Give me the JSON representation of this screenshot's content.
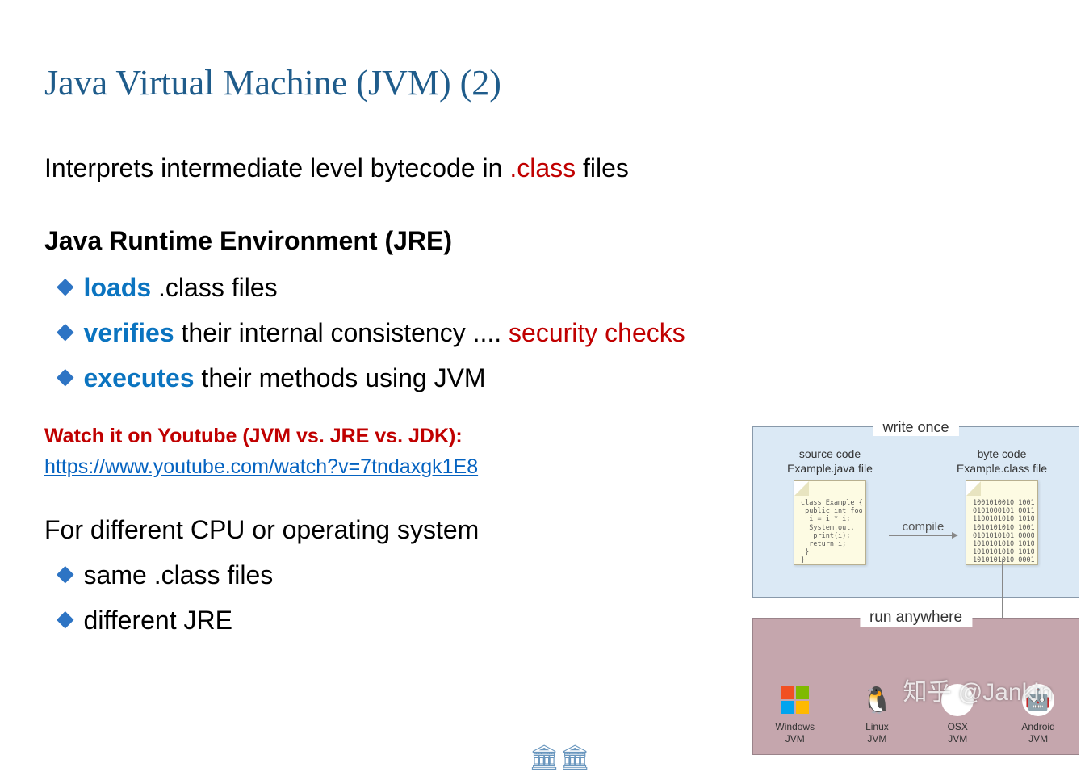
{
  "title": "Java Virtual Machine (JVM) (2)",
  "intro": {
    "pre": "Interprets intermediate level bytecode in ",
    "highlight": ".class",
    "post": " files"
  },
  "jre": {
    "heading": "Java Runtime Environment (JRE)",
    "items": [
      {
        "kw": "loads",
        "rest": " .class files",
        "red": ""
      },
      {
        "kw": "verifies",
        "rest": " their internal consistency .... ",
        "red": "security checks"
      },
      {
        "kw": "executes",
        "rest": " their methods using JVM",
        "red": ""
      }
    ]
  },
  "youtube": {
    "label": "Watch it on Youtube (JVM vs. JRE vs. JDK):",
    "url": "https://www.youtube.com/watch?v=7tndaxgk1E8"
  },
  "cpu": {
    "heading": "For different CPU or operating system",
    "items": [
      "same .class files",
      "different JRE"
    ]
  },
  "diagram": {
    "write_once_label": "write once",
    "run_anywhere_label": "run anywhere",
    "source": {
      "t1": "source code",
      "t2": "Example.java file",
      "code": "class Example {\n public int foo(int i){\n  i = i * i;\n  System.out.\n   print(i);\n  return i;\n }\n}"
    },
    "byte": {
      "t1": "byte code",
      "t2": "Example.class file",
      "code": "1001010010 1001\n0101000101 0011\n1100101010 1010\n1010101010 1001\n0101010101 0000\n1010101010 1010\n1010101010 1010\n1010101010 0001"
    },
    "compile_label": "compile",
    "jvms": [
      {
        "name": "Windows",
        "sub": "JVM"
      },
      {
        "name": "Linux",
        "sub": "JVM"
      },
      {
        "name": "OSX",
        "sub": "JVM"
      },
      {
        "name": "Android",
        "sub": "JVM"
      }
    ]
  },
  "watermark": "知乎 @Jankin",
  "colors": {
    "title": "#1f5c8b",
    "keyword": "#0b74c0",
    "red": "#c00000",
    "link": "#0563c1",
    "bullet": "#2d74c4",
    "wo_bg": "#dbe9f5",
    "ra_bg": "#c5a6ad"
  }
}
